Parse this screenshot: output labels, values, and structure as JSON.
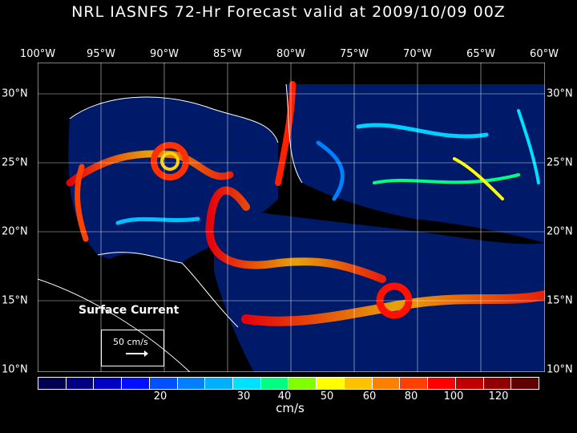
{
  "title": "NRL IASNFS  72-Hr Forecast valid at 2009/10/09 00Z",
  "lon_labels": [
    "100°W",
    "95°W",
    "90°W",
    "85°W",
    "80°W",
    "75°W",
    "70°W",
    "65°W",
    "60°W"
  ],
  "lat_labels": [
    "30°N",
    "25°N",
    "20°N",
    "15°N",
    "10°N"
  ],
  "annotation": "Surface Current",
  "legend_vector": "50 cm/s",
  "colorbar": {
    "units": "cm/s",
    "ticks": [
      "20",
      "30",
      "40",
      "50",
      "60",
      "80",
      "100",
      "120"
    ],
    "colors": [
      "#000050",
      "#000080",
      "#0000c0",
      "#0010ff",
      "#0050ff",
      "#0080ff",
      "#00b0ff",
      "#00e0ff",
      "#00ff80",
      "#80ff00",
      "#ffff00",
      "#ffc000",
      "#ff8000",
      "#ff4000",
      "#ff0000",
      "#c00000",
      "#900000",
      "#600000"
    ]
  }
}
